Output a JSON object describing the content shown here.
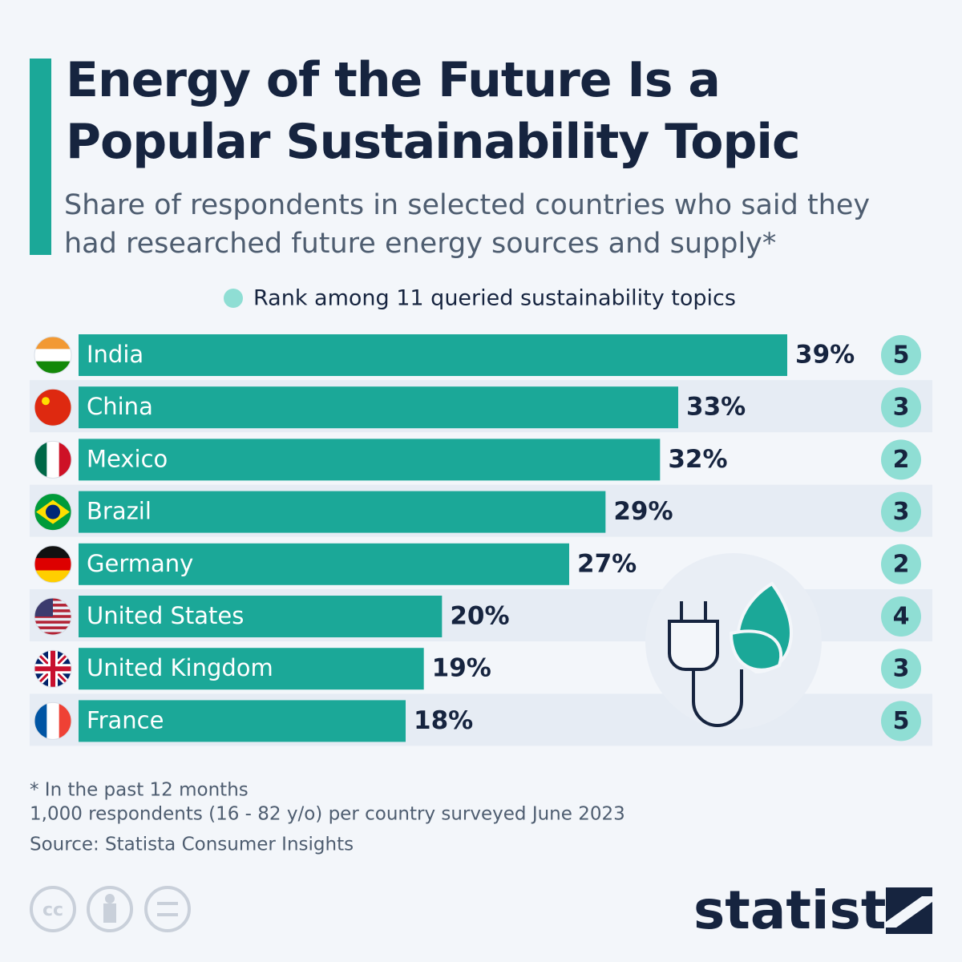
{
  "chart_data": {
    "type": "bar",
    "title": "Energy of the Future Is a Popular Sustainability Topic",
    "subtitle": "Share of respondents in selected countries who said they had researched future energy sources and supply*",
    "categories": [
      "India",
      "China",
      "Mexico",
      "Brazil",
      "Germany",
      "United States",
      "United Kingdom",
      "France"
    ],
    "values": [
      39,
      33,
      32,
      29,
      27,
      20,
      19,
      18
    ],
    "value_labels": [
      "39%",
      "33%",
      "32%",
      "29%",
      "27%",
      "20%",
      "19%",
      "18%"
    ],
    "color": "#1ba898",
    "rank": {
      "name": "Rank among 11 queried sustainability topics",
      "color": "#8fded4",
      "values": [
        5,
        3,
        2,
        3,
        2,
        4,
        3,
        5
      ]
    },
    "notes": [
      "* In the past 12 months",
      "1,000 respondents (16 - 82 y/o) per country surveyed June 2023"
    ],
    "source": "Source: Statista Consumer Insights",
    "brand": "statista"
  }
}
